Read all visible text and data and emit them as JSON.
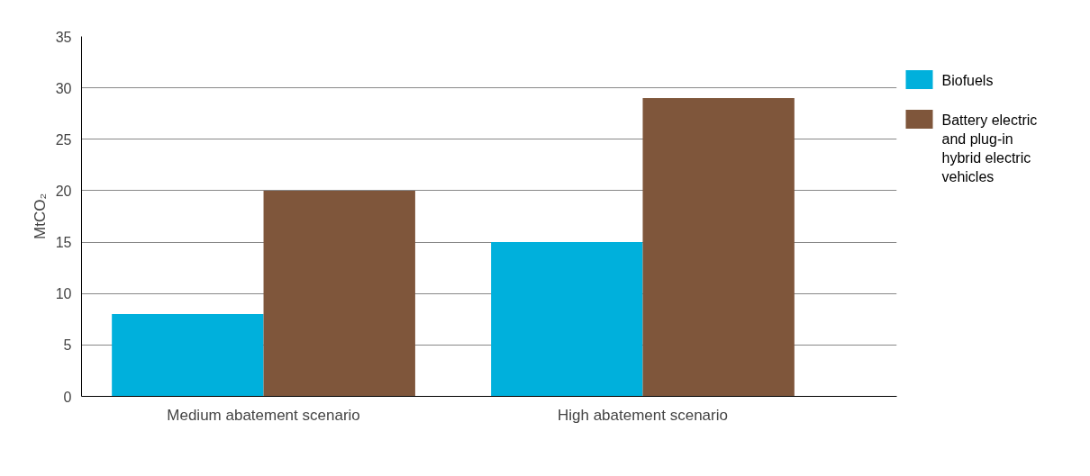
{
  "chart_data": {
    "type": "bar",
    "categories": [
      "Medium abatement scenario",
      "High abatement scenario"
    ],
    "series": [
      {
        "name": "Biofuels",
        "color": "#00b0dc",
        "values": [
          8,
          15
        ]
      },
      {
        "name": "Battery electric and plug-in hybrid electric vehicles",
        "color": "#7f563b",
        "values": [
          20,
          29
        ]
      }
    ],
    "ylabel": "MtCO₂",
    "ylim": [
      0,
      35
    ],
    "yticks": [
      0,
      5,
      10,
      15,
      20,
      25,
      30,
      35
    ],
    "grid": "y",
    "legend": "right"
  }
}
